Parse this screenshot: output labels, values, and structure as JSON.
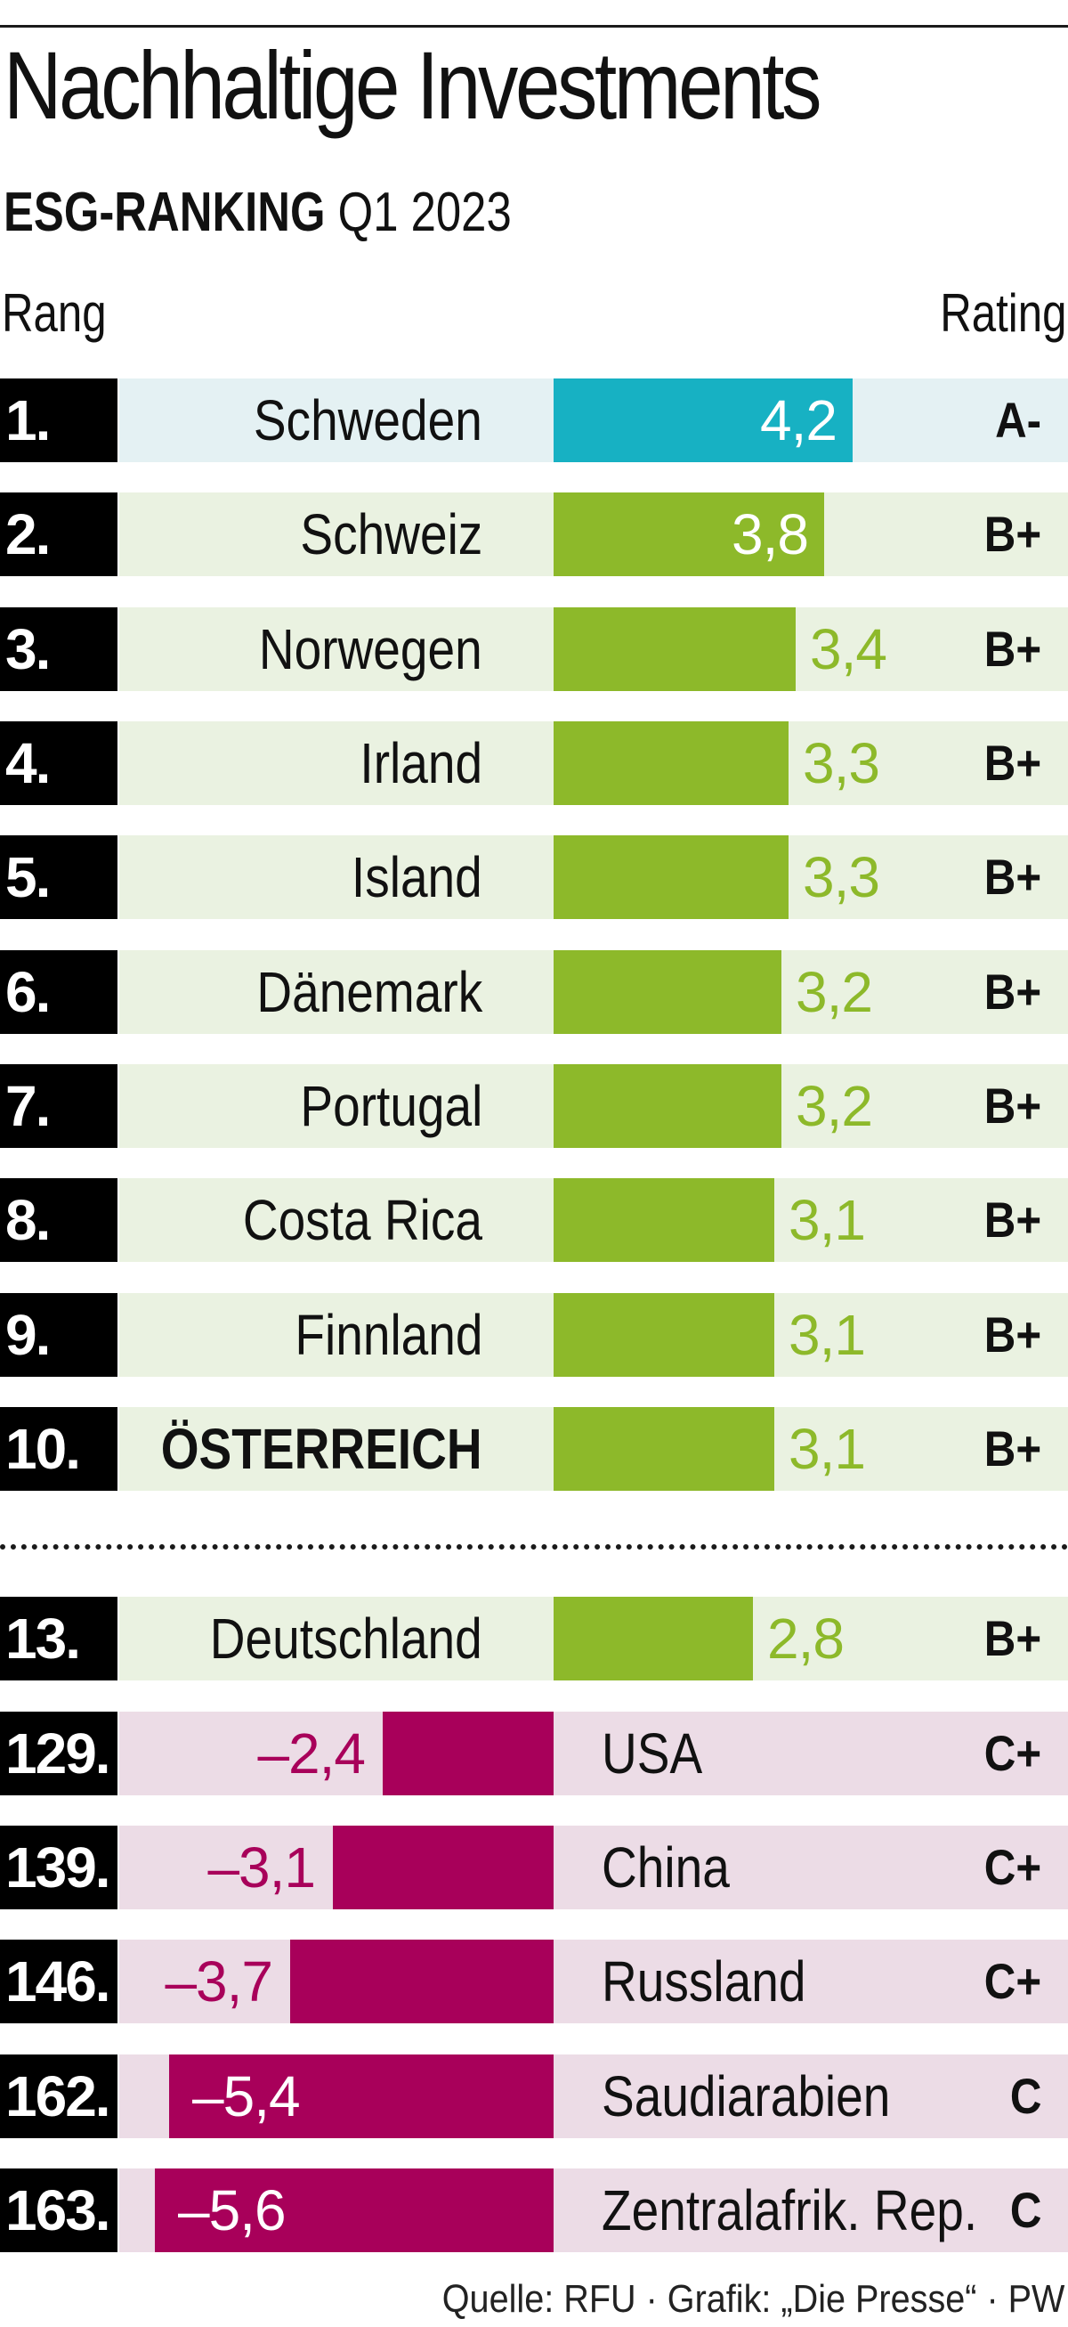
{
  "title": "Nachhaltige Investments",
  "subtitle_bold": "ESG-RANKING",
  "subtitle_rest": "Q1 2023",
  "col_rank": "Rang",
  "col_rating": "Rating",
  "source": "Quelle: RFU · Grafik: „Die Presse“ · PW",
  "colors": {
    "first": "#17b1c3",
    "positive": "#8db92a",
    "negative": "#a8005a"
  },
  "chart_data": {
    "type": "bar",
    "orientation": "horizontal",
    "title": "Nachhaltige Investments",
    "subtitle": "ESG-RANKING Q1 2023",
    "categories": [
      "Schweden",
      "Schweiz",
      "Norwegen",
      "Irland",
      "Island",
      "Dänemark",
      "Portugal",
      "Costa Rica",
      "Finnland",
      "ÖSTERREICH",
      "Deutschland",
      "USA",
      "China",
      "Russland",
      "Saudiarabien",
      "Zentralafrik. Rep."
    ],
    "values": [
      4.2,
      3.8,
      3.4,
      3.3,
      3.3,
      3.2,
      3.2,
      3.1,
      3.1,
      3.1,
      2.8,
      -2.4,
      -3.1,
      -3.7,
      -5.4,
      -5.6
    ],
    "rows": [
      {
        "rank": "1.",
        "country": "Schweden",
        "value": 4.2,
        "label": "4,2",
        "rating": "A-"
      },
      {
        "rank": "2.",
        "country": "Schweiz",
        "value": 3.8,
        "label": "3,8",
        "rating": "B+"
      },
      {
        "rank": "3.",
        "country": "Norwegen",
        "value": 3.4,
        "label": "3,4",
        "rating": "B+"
      },
      {
        "rank": "4.",
        "country": "Irland",
        "value": 3.3,
        "label": "3,3",
        "rating": "B+"
      },
      {
        "rank": "5.",
        "country": "Island",
        "value": 3.3,
        "label": "3,3",
        "rating": "B+"
      },
      {
        "rank": "6.",
        "country": "Dänemark",
        "value": 3.2,
        "label": "3,2",
        "rating": "B+"
      },
      {
        "rank": "7.",
        "country": "Portugal",
        "value": 3.2,
        "label": "3,2",
        "rating": "B+"
      },
      {
        "rank": "8.",
        "country": "Costa Rica",
        "value": 3.1,
        "label": "3,1",
        "rating": "B+"
      },
      {
        "rank": "9.",
        "country": "Finnland",
        "value": 3.1,
        "label": "3,1",
        "rating": "B+"
      },
      {
        "rank": "10.",
        "country": "ÖSTERREICH",
        "value": 3.1,
        "label": "3,1",
        "rating": "B+"
      },
      {
        "rank": "13.",
        "country": "Deutschland",
        "value": 2.8,
        "label": "2,8",
        "rating": "B+"
      },
      {
        "rank": "129.",
        "country": "USA",
        "value": -2.4,
        "label": "–2,4",
        "rating": "C+"
      },
      {
        "rank": "139.",
        "country": "China",
        "value": -3.1,
        "label": "–3,1",
        "rating": "C+"
      },
      {
        "rank": "146.",
        "country": "Russland",
        "value": -3.7,
        "label": "–3,7",
        "rating": "C+"
      },
      {
        "rank": "162.",
        "country": "Saudiarabien",
        "value": -5.4,
        "label": "–5,4",
        "rating": "C"
      },
      {
        "rank": "163.",
        "country": "Zentralafrik. Rep.",
        "value": -5.6,
        "label": "–5,6",
        "rating": "C"
      }
    ]
  }
}
